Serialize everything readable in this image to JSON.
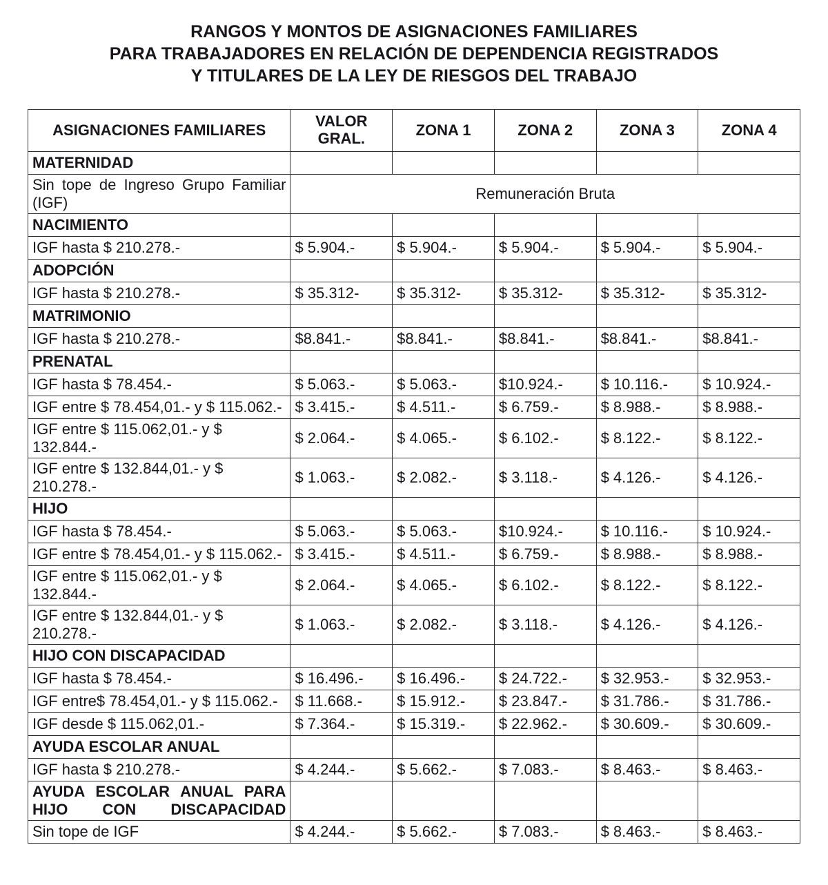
{
  "title_lines": [
    "RANGOS Y MONTOS DE ASIGNACIONES FAMILIARES",
    "PARA TRABAJADORES EN RELACIÓN DE DEPENDENCIA REGISTRADOS",
    "Y TITULARES DE LA LEY DE RIESGOS DEL TRABAJO"
  ],
  "columns": {
    "label": "ASIGNACIONES FAMILIARES",
    "valor_gral": "VALOR GRAL.",
    "zona1": "ZONA 1",
    "zona2": "ZONA 2",
    "zona3": "ZONA 3",
    "zona4": "ZONA 4"
  },
  "styling": {
    "font_family": "Arial",
    "title_fontsize_pt": 19,
    "body_fontsize_pt": 16,
    "border_color": "#303030",
    "text_color": "#18161a",
    "background_color": "#ffffff",
    "column_widths_pct": [
      34,
      13.2,
      13.2,
      13.2,
      13.2,
      13.2
    ]
  },
  "rows": [
    {
      "type": "section",
      "label": "MATERNIDAD"
    },
    {
      "type": "merged",
      "label": "Sin tope de Ingreso Grupo Familiar (IGF)",
      "note": "Remuneración Bruta",
      "justify": true
    },
    {
      "type": "section",
      "label": "NACIMIENTO"
    },
    {
      "type": "data",
      "label": "IGF hasta $ 210.278.-",
      "v": [
        "$ 5.904.-",
        "$ 5.904.-",
        "$ 5.904.-",
        "$ 5.904.-",
        "$ 5.904.-"
      ]
    },
    {
      "type": "section",
      "label": "ADOPCIÓN"
    },
    {
      "type": "data",
      "label": "IGF hasta $ 210.278.-",
      "v": [
        "$ 35.312-",
        "$ 35.312-",
        "$ 35.312-",
        "$ 35.312-",
        "$ 35.312-"
      ]
    },
    {
      "type": "section",
      "label": "MATRIMONIO"
    },
    {
      "type": "data",
      "label": "IGF hasta $ 210.278.-",
      "v": [
        "$8.841.-",
        "$8.841.-",
        "$8.841.-",
        "$8.841.-",
        "$8.841.-"
      ]
    },
    {
      "type": "section",
      "label": "PRENATAL"
    },
    {
      "type": "data",
      "label": "IGF hasta $ 78.454.-",
      "v": [
        "$ 5.063.-",
        "$ 5.063.-",
        "$10.924.-",
        "$ 10.116.-",
        "$ 10.924.-"
      ]
    },
    {
      "type": "data",
      "label": "IGF entre $ 78.454,01.- y $ 115.062.-",
      "v": [
        "$ 3.415.-",
        "$ 4.511.-",
        "$ 6.759.-",
        "$ 8.988.-",
        "$ 8.988.-"
      ]
    },
    {
      "type": "data",
      "label": "IGF entre $ 115.062,01.- y $ 132.844.-",
      "v": [
        "$ 2.064.-",
        "$ 4.065.-",
        "$ 6.102.-",
        "$ 8.122.-",
        "$ 8.122.-"
      ]
    },
    {
      "type": "data",
      "label": "IGF entre $ 132.844,01.- y $ 210.278.-",
      "v": [
        "$ 1.063.-",
        "$ 2.082.-",
        "$ 3.118.-",
        "$ 4.126.-",
        "$ 4.126.-"
      ]
    },
    {
      "type": "section",
      "label": "HIJO"
    },
    {
      "type": "data",
      "label": "IGF hasta $ 78.454.-",
      "v": [
        "$ 5.063.-",
        "$ 5.063.-",
        "$10.924.-",
        "$ 10.116.-",
        "$ 10.924.-"
      ]
    },
    {
      "type": "data",
      "label": "IGF entre $ 78.454,01.- y $ 115.062.-",
      "v": [
        "$ 3.415.-",
        "$ 4.511.-",
        "$ 6.759.-",
        "$ 8.988.-",
        "$ 8.988.-"
      ]
    },
    {
      "type": "data",
      "label": "IGF entre $ 115.062,01.- y $ 132.844.-",
      "v": [
        "$ 2.064.-",
        "$ 4.065.-",
        "$ 6.102.-",
        "$ 8.122.-",
        "$ 8.122.-"
      ]
    },
    {
      "type": "data",
      "label": "IGF entre $ 132.844,01.- y $ 210.278.-",
      "v": [
        "$ 1.063.-",
        "$ 2.082.-",
        "$ 3.118.-",
        "$ 4.126.-",
        "$ 4.126.-"
      ]
    },
    {
      "type": "section",
      "label": "HIJO CON DISCAPACIDAD"
    },
    {
      "type": "data",
      "label": "IGF hasta $ 78.454.-",
      "v": [
        "$ 16.496.-",
        "$ 16.496.-",
        "$ 24.722.-",
        "$ 32.953.-",
        "$ 32.953.-"
      ]
    },
    {
      "type": "data",
      "label": "IGF entre$ 78.454,01.- y $ 115.062.-",
      "v": [
        "$ 11.668.-",
        "$ 15.912.-",
        "$ 23.847.-",
        "$ 31.786.-",
        "$ 31.786.-"
      ]
    },
    {
      "type": "data",
      "label": "IGF desde $ 115.062,01.-",
      "v": [
        "$ 7.364.-",
        "$ 15.319.-",
        "$ 22.962.-",
        "$ 30.609.-",
        "$ 30.609.-"
      ]
    },
    {
      "type": "section",
      "label": "AYUDA ESCOLAR ANUAL"
    },
    {
      "type": "data",
      "label": "IGF hasta $ 210.278.-",
      "v": [
        "$ 4.244.-",
        "$ 5.662.-",
        "$ 7.083.-",
        "$ 8.463.-",
        "$ 8.463.-"
      ]
    },
    {
      "type": "section",
      "label": "AYUDA ESCOLAR ANUAL PARA HIJO CON DISCAPACIDAD",
      "justify": true
    },
    {
      "type": "data",
      "label": "Sin tope de IGF",
      "v": [
        "$ 4.244.-",
        "$ 5.662.-",
        "$ 7.083.-",
        "$ 8.463.-",
        "$ 8.463.-"
      ]
    }
  ]
}
